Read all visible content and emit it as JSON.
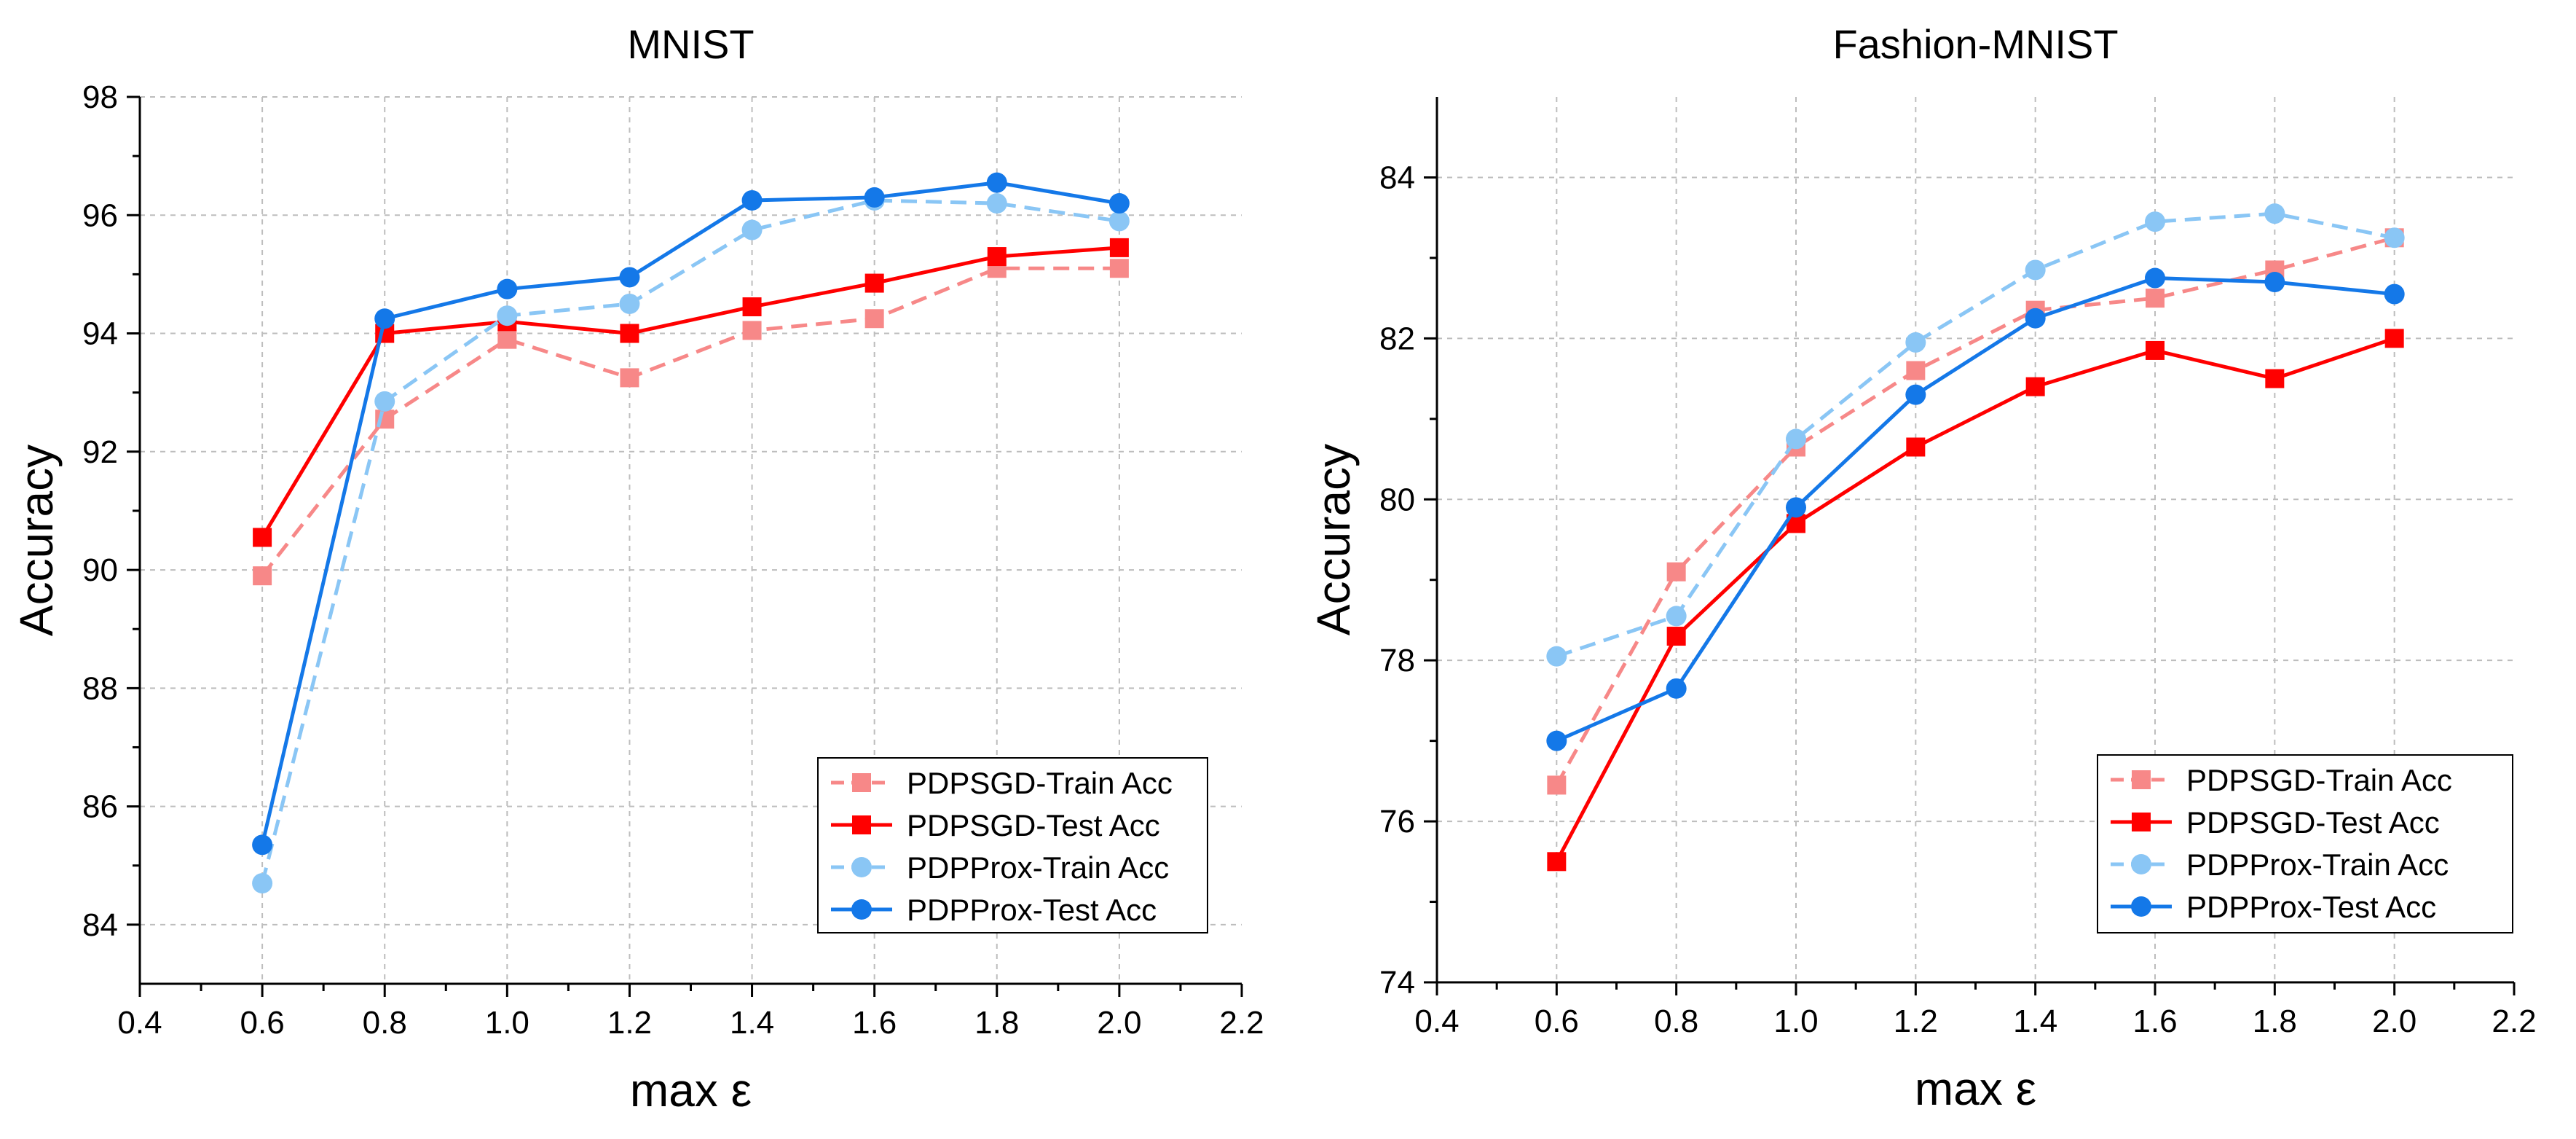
{
  "chart_data": [
    {
      "type": "line",
      "title": "MNIST",
      "xlabel": "max ε",
      "ylabel": "Accuracy",
      "xlim": [
        0.4,
        2.2
      ],
      "ylim": [
        83,
        98
      ],
      "xticks": [
        "0.4",
        "0.6",
        "0.8",
        "1.0",
        "1.2",
        "1.4",
        "1.6",
        "1.8",
        "2.0",
        "2.2"
      ],
      "yticks": [
        "84",
        "86",
        "88",
        "90",
        "92",
        "94",
        "96",
        "98"
      ],
      "grid": true,
      "legend_position": "bottom-right",
      "x": [
        0.6,
        0.8,
        1.0,
        1.2,
        1.4,
        1.6,
        1.8,
        2.0
      ],
      "series": [
        {
          "name": "PDPSGD-Train Acc",
          "values": [
            89.9,
            92.55,
            93.9,
            93.25,
            94.05,
            94.25,
            95.1,
            95.1
          ]
        },
        {
          "name": "PDPSGD-Test Acc",
          "values": [
            90.55,
            94.0,
            94.2,
            94.0,
            94.45,
            94.85,
            95.3,
            95.45
          ]
        },
        {
          "name": "PDPProx-Train Acc",
          "values": [
            84.7,
            92.85,
            94.3,
            94.5,
            95.75,
            96.25,
            96.2,
            95.9
          ]
        },
        {
          "name": "PDPProx-Test Acc",
          "values": [
            85.35,
            94.25,
            94.75,
            94.95,
            96.25,
            96.3,
            96.55,
            96.2
          ]
        }
      ]
    },
    {
      "type": "line",
      "title": "Fashion-MNIST",
      "xlabel": "max ε",
      "ylabel": "Accuracy",
      "xlim": [
        0.4,
        2.2
      ],
      "ylim": [
        74,
        85
      ],
      "xticks": [
        "0.4",
        "0.6",
        "0.8",
        "1.0",
        "1.2",
        "1.4",
        "1.6",
        "1.8",
        "2.0",
        "2.2"
      ],
      "yticks": [
        "74",
        "76",
        "78",
        "80",
        "82",
        "84"
      ],
      "grid": true,
      "legend_position": "bottom-right",
      "x": [
        0.6,
        0.8,
        1.0,
        1.2,
        1.4,
        1.6,
        1.8,
        2.0
      ],
      "series": [
        {
          "name": "PDPSGD-Train Acc",
          "values": [
            76.45,
            79.1,
            80.65,
            81.6,
            82.35,
            82.5,
            82.85,
            83.25
          ]
        },
        {
          "name": "PDPSGD-Test Acc",
          "values": [
            75.5,
            78.3,
            79.7,
            80.65,
            81.4,
            81.85,
            81.5,
            82.0
          ]
        },
        {
          "name": "PDPProx-Train Acc",
          "values": [
            78.05,
            78.55,
            80.75,
            81.95,
            82.85,
            83.45,
            83.55,
            83.25
          ]
        },
        {
          "name": "PDPProx-Test Acc",
          "values": [
            77.0,
            77.65,
            79.9,
            81.3,
            82.25,
            82.75,
            82.7,
            82.55
          ]
        }
      ]
    }
  ],
  "series_styles": [
    {
      "color": "#F78888",
      "dashed": true,
      "marker": "square"
    },
    {
      "color": "#FF0000",
      "dashed": false,
      "marker": "square"
    },
    {
      "color": "#8AC6F5",
      "dashed": true,
      "marker": "circle"
    },
    {
      "color": "#1478E8",
      "dashed": false,
      "marker": "circle"
    }
  ]
}
